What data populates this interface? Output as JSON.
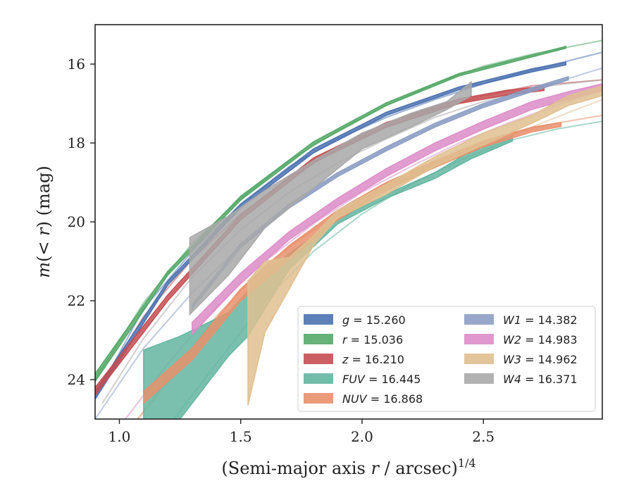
{
  "chart_data": {
    "type": "area",
    "xlabel": "(Semi-major axis r / arcsec)^{1/4}",
    "ylabel": "m(< r) (mag)",
    "xlim": [
      0.9,
      2.99
    ],
    "ylim": [
      25.0,
      15.0
    ],
    "y_inverted": true,
    "grid": false,
    "legend_position": "lower-right",
    "xticks": [
      "1.0",
      "1.5",
      "2.0",
      "2.5"
    ],
    "xtick_values": [
      1.0,
      1.5,
      2.0,
      2.5
    ],
    "yticks": [
      "16",
      "18",
      "20",
      "22",
      "24"
    ],
    "ytick_values": [
      16,
      18,
      20,
      22,
      24
    ],
    "series": [
      {
        "legend": "g = 15.260",
        "legend_var": "g",
        "legend_value": "15.260",
        "color": "#4c72b0",
        "model_x": [
          0.9,
          1.1,
          1.3,
          1.5,
          1.7,
          1.9,
          2.1,
          2.3,
          2.5,
          2.7,
          2.99
        ],
        "model_y": [
          24.45,
          22.2,
          20.75,
          19.55,
          18.6,
          17.9,
          17.35,
          16.9,
          16.5,
          16.15,
          15.7
        ],
        "band_x": [
          0.9,
          1.2,
          1.5,
          1.8,
          2.1,
          2.4,
          2.7,
          2.84
        ],
        "band_upper": [
          24.5,
          21.6,
          19.65,
          18.25,
          17.3,
          16.65,
          16.2,
          16.02
        ],
        "band_lower": [
          24.3,
          21.5,
          19.55,
          18.15,
          17.22,
          16.58,
          16.12,
          15.95
        ]
      },
      {
        "legend": "r = 15.036",
        "legend_var": "r",
        "legend_value": "15.036",
        "color": "#55a868",
        "model_x": [
          0.9,
          1.1,
          1.3,
          1.5,
          1.7,
          1.9,
          2.1,
          2.3,
          2.5,
          2.7,
          2.99
        ],
        "model_y": [
          24.0,
          22.05,
          20.55,
          19.4,
          18.45,
          17.7,
          17.05,
          16.5,
          16.05,
          15.75,
          15.4
        ],
        "band_x": [
          0.9,
          1.2,
          1.5,
          1.8,
          2.1,
          2.4,
          2.7,
          2.84
        ],
        "band_upper": [
          24.05,
          21.35,
          19.45,
          18.05,
          17.05,
          16.3,
          15.82,
          15.6
        ],
        "band_lower": [
          23.85,
          21.25,
          19.35,
          17.97,
          16.98,
          16.24,
          15.77,
          15.55
        ]
      },
      {
        "legend": "z = 16.210",
        "legend_var": "z",
        "legend_value": "16.210",
        "color": "#c44e52",
        "model_x": [
          0.9,
          1.1,
          1.3,
          1.5,
          1.7,
          1.9,
          2.1,
          2.3,
          2.5,
          2.7,
          2.99
        ],
        "model_y": [
          24.4,
          22.4,
          20.95,
          19.8,
          18.9,
          18.15,
          17.6,
          17.15,
          16.8,
          16.55,
          16.4
        ],
        "band_x": [
          0.9,
          1.2,
          1.5,
          1.8,
          2.1,
          2.4,
          2.6,
          2.75
        ],
        "band_upper": [
          24.4,
          22.0,
          19.95,
          18.5,
          17.6,
          17.0,
          16.78,
          16.67
        ],
        "band_lower": [
          24.2,
          21.85,
          19.82,
          18.38,
          17.48,
          16.88,
          16.66,
          16.56
        ]
      },
      {
        "legend": "FUV = 16.445",
        "legend_var": "FUV",
        "legend_value": "16.445",
        "color": "#64b5a0",
        "model_x": [
          1.2,
          1.4,
          1.6,
          1.8,
          2.0,
          2.2,
          2.4,
          2.6,
          2.8,
          2.99
        ],
        "model_y": [
          25.2,
          23.6,
          22.0,
          20.75,
          19.8,
          19.05,
          18.45,
          17.95,
          17.65,
          17.45
        ],
        "band_x": [
          1.1,
          1.25,
          1.45,
          1.53,
          1.7,
          1.9,
          2.1,
          2.3,
          2.45,
          2.62
        ],
        "band_upper": [
          23.25,
          22.9,
          22.3,
          21.75,
          20.8,
          19.95,
          19.3,
          18.75,
          18.2,
          17.82
        ],
        "band_lower": [
          25.0,
          25.0,
          23.4,
          22.9,
          21.2,
          20.05,
          19.4,
          18.9,
          18.4,
          17.95
        ]
      },
      {
        "legend": "NUV = 16.868",
        "legend_var": "NUV",
        "legend_value": "16.868",
        "color": "#e8906c",
        "model_x": [
          1.05,
          1.2,
          1.4,
          1.6,
          1.8,
          2.0,
          2.2,
          2.4,
          2.6,
          2.8,
          2.99
        ],
        "model_y": [
          25.2,
          24.0,
          22.4,
          21.1,
          20.2,
          19.4,
          18.8,
          18.25,
          17.8,
          17.5,
          17.3
        ],
        "band_x": [
          1.1,
          1.3,
          1.5,
          1.7,
          1.9,
          2.1,
          2.3,
          2.5,
          2.7,
          2.82
        ],
        "band_upper": [
          24.3,
          23.2,
          21.7,
          20.6,
          19.7,
          19.0,
          18.45,
          17.95,
          17.6,
          17.48
        ],
        "band_lower": [
          24.6,
          23.5,
          22.0,
          20.95,
          19.95,
          19.2,
          18.62,
          18.1,
          17.72,
          17.58
        ]
      },
      {
        "legend": "W1 = 14.382",
        "legend_var": "W1",
        "legend_value": "14.382",
        "color": "#8c9fc4",
        "model_x": [
          0.9,
          1.1,
          1.3,
          1.5,
          1.7,
          1.9,
          2.1,
          2.3,
          2.5,
          2.7,
          2.99
        ],
        "model_y": [
          25.0,
          23.2,
          21.8,
          20.6,
          19.6,
          18.8,
          18.15,
          17.55,
          17.05,
          16.65,
          16.1
        ],
        "band_x": [
          1.3,
          1.5,
          1.7,
          1.9,
          2.1,
          2.3,
          2.5,
          2.7,
          2.85
        ],
        "band_upper": [
          22.1,
          20.55,
          19.55,
          18.75,
          18.1,
          17.5,
          17.0,
          16.6,
          16.32
        ],
        "band_lower": [
          22.2,
          20.65,
          19.65,
          18.85,
          18.2,
          17.6,
          17.1,
          16.7,
          16.4
        ]
      },
      {
        "legend": "W2 = 14.983",
        "legend_var": "W2",
        "legend_value": "14.983",
        "color": "#dd8cc8",
        "model_x": [
          1.0,
          1.2,
          1.4,
          1.6,
          1.8,
          2.0,
          2.2,
          2.4,
          2.6,
          2.8,
          2.99
        ],
        "model_y": [
          25.2,
          23.6,
          22.15,
          21.0,
          20.05,
          19.25,
          18.6,
          18.0,
          17.5,
          17.05,
          16.65
        ],
        "band_x": [
          1.3,
          1.5,
          1.7,
          1.9,
          2.1,
          2.3,
          2.5,
          2.7,
          2.85,
          2.99
        ],
        "band_upper": [
          22.55,
          21.3,
          20.25,
          19.4,
          18.65,
          18.0,
          17.45,
          16.95,
          16.7,
          16.5
        ],
        "band_lower": [
          22.85,
          21.55,
          20.45,
          19.6,
          18.85,
          18.2,
          17.65,
          17.15,
          16.9,
          16.68
        ]
      },
      {
        "legend": "W3 = 14.962",
        "legend_var": "W3",
        "legend_value": "14.962",
        "color": "#dfbf90",
        "model_x": [
          1.05,
          1.2,
          1.4,
          1.6,
          1.8,
          2.0,
          2.2,
          2.4,
          2.6,
          2.8,
          2.99
        ],
        "model_y": [
          25.2,
          24.1,
          22.6,
          21.4,
          20.35,
          19.55,
          18.9,
          18.35,
          17.85,
          17.35,
          16.9
        ],
        "band_x": [
          1.53,
          1.6,
          1.7,
          1.8,
          1.9,
          2.1,
          2.3,
          2.5,
          2.7,
          2.85,
          2.99
        ],
        "band_upper": [
          21.5,
          21.0,
          20.9,
          20.35,
          19.7,
          19.05,
          18.35,
          17.75,
          17.3,
          16.8,
          16.55
        ],
        "band_lower": [
          24.65,
          22.8,
          21.7,
          20.6,
          19.9,
          19.3,
          18.6,
          18.05,
          17.5,
          17.05,
          16.8
        ]
      },
      {
        "legend": "W4 = 16.371",
        "legend_var": "W4",
        "legend_value": "16.371",
        "color": "#a8a8a8",
        "model_x": [
          0.93,
          1.1,
          1.3,
          1.5,
          1.7,
          1.9,
          2.1,
          2.3,
          2.5,
          2.7,
          2.99
        ],
        "model_y": [
          24.6,
          22.95,
          21.4,
          20.2,
          19.25,
          18.5,
          17.9,
          17.35,
          16.95,
          16.6,
          16.4
        ],
        "band_x": [
          1.29,
          1.45,
          1.6,
          1.8,
          2.0,
          2.2,
          2.35,
          2.45
        ],
        "band_upper": [
          20.4,
          19.85,
          19.2,
          18.45,
          17.75,
          17.25,
          16.95,
          16.45
        ],
        "band_lower": [
          22.35,
          21.35,
          20.15,
          19.15,
          18.15,
          17.6,
          17.15,
          16.8
        ]
      }
    ]
  }
}
